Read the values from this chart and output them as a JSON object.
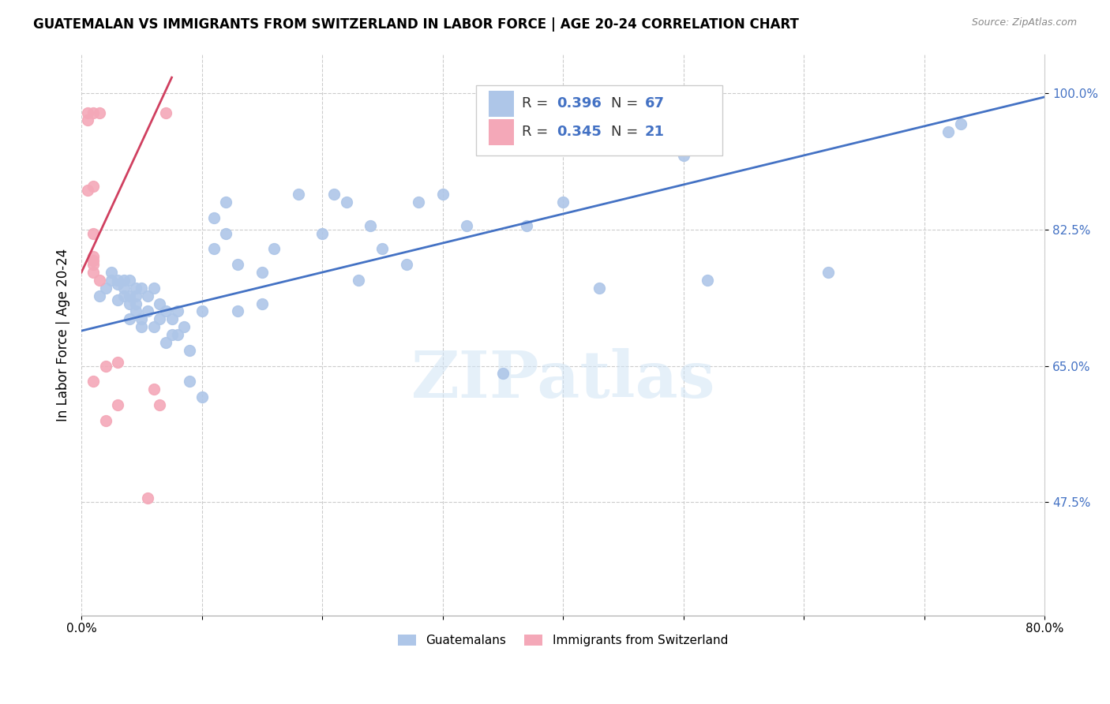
{
  "title": "GUATEMALAN VS IMMIGRANTS FROM SWITZERLAND IN LABOR FORCE | AGE 20-24 CORRELATION CHART",
  "source": "Source: ZipAtlas.com",
  "ylabel": "In Labor Force | Age 20-24",
  "xlim": [
    0.0,
    0.8
  ],
  "ylim": [
    0.33,
    1.05
  ],
  "xticks": [
    0.0,
    0.1,
    0.2,
    0.3,
    0.4,
    0.5,
    0.6,
    0.7,
    0.8
  ],
  "xticklabels": [
    "0.0%",
    "",
    "",
    "",
    "",
    "",
    "",
    "",
    "80.0%"
  ],
  "yticks": [
    0.475,
    0.65,
    0.825,
    1.0
  ],
  "yticklabels": [
    "47.5%",
    "65.0%",
    "82.5%",
    "100.0%"
  ],
  "blue_color": "#aec6e8",
  "pink_color": "#f4a8b8",
  "trend_blue": "#4472c4",
  "trend_pink": "#d04060",
  "blue_x": [
    0.015,
    0.02,
    0.025,
    0.025,
    0.03,
    0.03,
    0.03,
    0.035,
    0.035,
    0.035,
    0.04,
    0.04,
    0.04,
    0.04,
    0.045,
    0.045,
    0.045,
    0.045,
    0.05,
    0.05,
    0.05,
    0.055,
    0.055,
    0.06,
    0.06,
    0.065,
    0.065,
    0.07,
    0.07,
    0.075,
    0.075,
    0.08,
    0.08,
    0.085,
    0.09,
    0.09,
    0.1,
    0.1,
    0.11,
    0.11,
    0.12,
    0.12,
    0.13,
    0.13,
    0.15,
    0.15,
    0.16,
    0.18,
    0.2,
    0.21,
    0.22,
    0.23,
    0.24,
    0.25,
    0.27,
    0.28,
    0.3,
    0.32,
    0.35,
    0.37,
    0.4,
    0.43,
    0.5,
    0.52,
    0.62,
    0.72,
    0.73
  ],
  "blue_y": [
    0.74,
    0.75,
    0.76,
    0.77,
    0.735,
    0.755,
    0.76,
    0.74,
    0.75,
    0.76,
    0.71,
    0.73,
    0.74,
    0.76,
    0.72,
    0.73,
    0.74,
    0.75,
    0.7,
    0.71,
    0.75,
    0.72,
    0.74,
    0.7,
    0.75,
    0.71,
    0.73,
    0.68,
    0.72,
    0.69,
    0.71,
    0.69,
    0.72,
    0.7,
    0.63,
    0.67,
    0.61,
    0.72,
    0.8,
    0.84,
    0.82,
    0.86,
    0.72,
    0.78,
    0.73,
    0.77,
    0.8,
    0.87,
    0.82,
    0.87,
    0.86,
    0.76,
    0.83,
    0.8,
    0.78,
    0.86,
    0.87,
    0.83,
    0.64,
    0.83,
    0.86,
    0.75,
    0.92,
    0.76,
    0.77,
    0.95,
    0.96
  ],
  "pink_x": [
    0.005,
    0.005,
    0.005,
    0.01,
    0.01,
    0.01,
    0.01,
    0.01,
    0.01,
    0.01,
    0.01,
    0.015,
    0.015,
    0.02,
    0.02,
    0.03,
    0.03,
    0.055,
    0.06,
    0.065,
    0.07
  ],
  "pink_y": [
    0.975,
    0.965,
    0.875,
    0.975,
    0.88,
    0.82,
    0.79,
    0.785,
    0.78,
    0.77,
    0.63,
    0.975,
    0.76,
    0.65,
    0.58,
    0.655,
    0.6,
    0.48,
    0.62,
    0.6,
    0.975
  ],
  "blue_trend_x": [
    0.0,
    0.8
  ],
  "blue_trend_y": [
    0.695,
    0.995
  ],
  "pink_trend_x": [
    0.0,
    0.075
  ],
  "pink_trend_y": [
    0.77,
    1.02
  ],
  "watermark_text": "ZIPatlas",
  "legend_r_blue": "R = 0.396",
  "legend_n_blue": "N = 67",
  "legend_r_pink": "R = 0.345",
  "legend_n_pink": "N = 21",
  "label_guatemalans": "Guatemalans",
  "label_swiss": "Immigrants from Switzerland"
}
